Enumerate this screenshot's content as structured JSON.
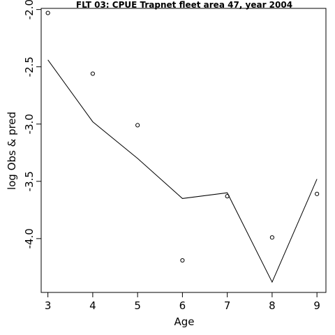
{
  "chart_data": {
    "type": "scatter",
    "title": "FLT 03: CPUE Trapnet fleet area 47, year 2004",
    "xlabel": "Age",
    "ylabel": "log Obs & pred",
    "x": [
      3,
      4,
      5,
      6,
      7,
      8,
      9
    ],
    "xlim": [
      2.85,
      9.2
    ],
    "ylim": [
      -4.47,
      -1.99
    ],
    "xticks": [
      "3",
      "4",
      "5",
      "6",
      "7",
      "8",
      "9"
    ],
    "yticks": [
      "-2.0",
      "-2.5",
      "-3.0",
      "-3.5",
      "-4.0"
    ],
    "grid": false,
    "series": [
      {
        "style": "points",
        "values": [
          -2.03,
          -2.56,
          -3.01,
          -4.19,
          -3.63,
          -3.99,
          -3.61
        ]
      },
      {
        "style": "line",
        "values": [
          -2.44,
          -2.98,
          -3.3,
          -3.65,
          -3.6,
          -4.38,
          -3.48
        ]
      }
    ]
  }
}
